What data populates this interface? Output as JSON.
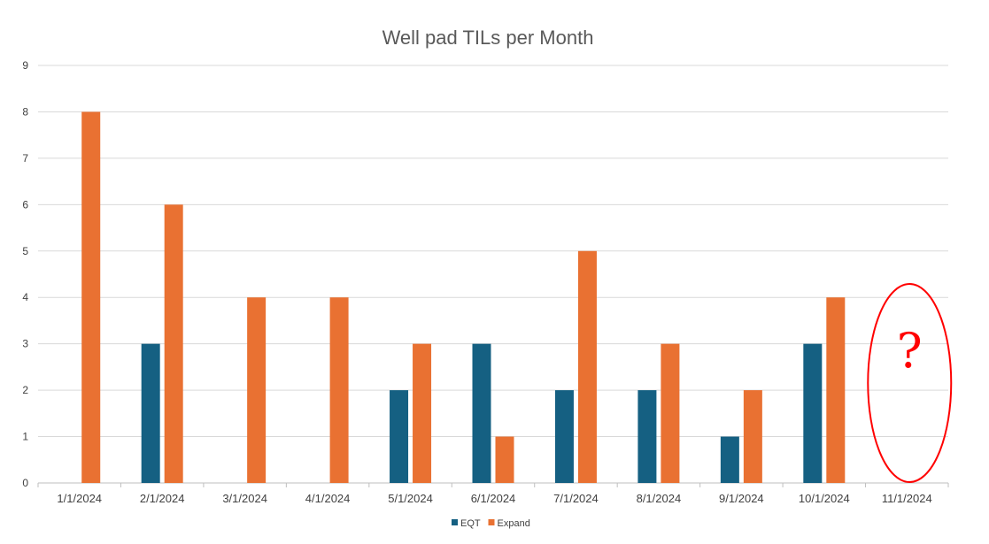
{
  "chart_data": {
    "type": "bar",
    "title": "Well pad TILs per Month",
    "xlabel": "",
    "ylabel": "",
    "ylim": [
      0,
      9
    ],
    "yticks": [
      0,
      1,
      2,
      3,
      4,
      5,
      6,
      7,
      8,
      9
    ],
    "grid": true,
    "legend_position": "bottom",
    "categories": [
      "1/1/2024",
      "2/1/2024",
      "3/1/2024",
      "4/1/2024",
      "5/1/2024",
      "6/1/2024",
      "7/1/2024",
      "8/1/2024",
      "9/1/2024",
      "10/1/2024",
      "11/1/2024"
    ],
    "series": [
      {
        "name": "EQT",
        "color": "#156082",
        "values": [
          0,
          3,
          0,
          0,
          2,
          3,
          2,
          2,
          1,
          3,
          null
        ]
      },
      {
        "name": "Expand",
        "color": "#E97132",
        "values": [
          8,
          6,
          4,
          4,
          3,
          1,
          5,
          3,
          2,
          4,
          null
        ]
      }
    ],
    "annotation": {
      "text": "?",
      "category": "11/1/2024",
      "color": "#FF0000",
      "shape": "ellipse"
    }
  }
}
